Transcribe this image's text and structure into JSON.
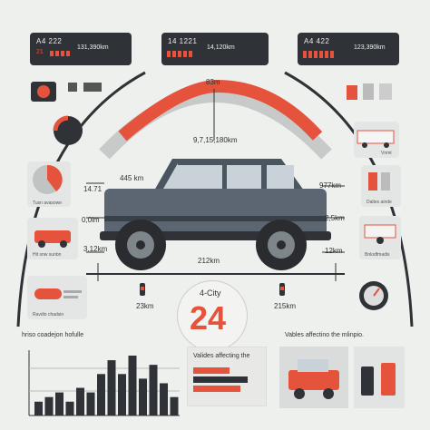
{
  "top_boxes": [
    {
      "code": "A4 222",
      "sub": "21",
      "reading": "131,390km"
    },
    {
      "code": "14 1221",
      "sub": "",
      "reading": "14,120km"
    },
    {
      "code": "A4 422",
      "sub": "",
      "reading": "123,390km"
    }
  ],
  "gauge": {
    "top_label": "83m",
    "center_reading": "9,7,15,180km"
  },
  "left_labels": [
    "445 km",
    "14.71",
    "0,0lm",
    "3,12km"
  ],
  "right_labels": [
    "977km",
    "2,5km",
    "12km"
  ],
  "bottom_labels": [
    "212km",
    "23km",
    "215km"
  ],
  "side_captions_left": [
    "Tusn avasowe",
    "Hit snw sunbn",
    "Ravdio chadsin"
  ],
  "side_captions_right": [
    "Vnmt",
    "Daltes ainde",
    "Bnlodfmadis"
  ],
  "center_badge": {
    "label": "4-City",
    "value": "24"
  },
  "bottom_left_panel": {
    "title": "hriso coadejon hofulle",
    "bar_values": [
      3,
      4,
      5,
      3,
      6,
      5,
      9,
      12,
      9,
      13,
      8,
      11,
      7,
      4
    ]
  },
  "bottom_middle_panel": {
    "title": "Valides affecting the"
  },
  "bottom_right_panel": {
    "title": "Vables affectino the mlinpio."
  },
  "colors": {
    "accent": "#e5533d",
    "dark": "#2f3236",
    "panel": "#e4e6e5",
    "background": "#eef0ee",
    "car_body": "#5b6672"
  }
}
